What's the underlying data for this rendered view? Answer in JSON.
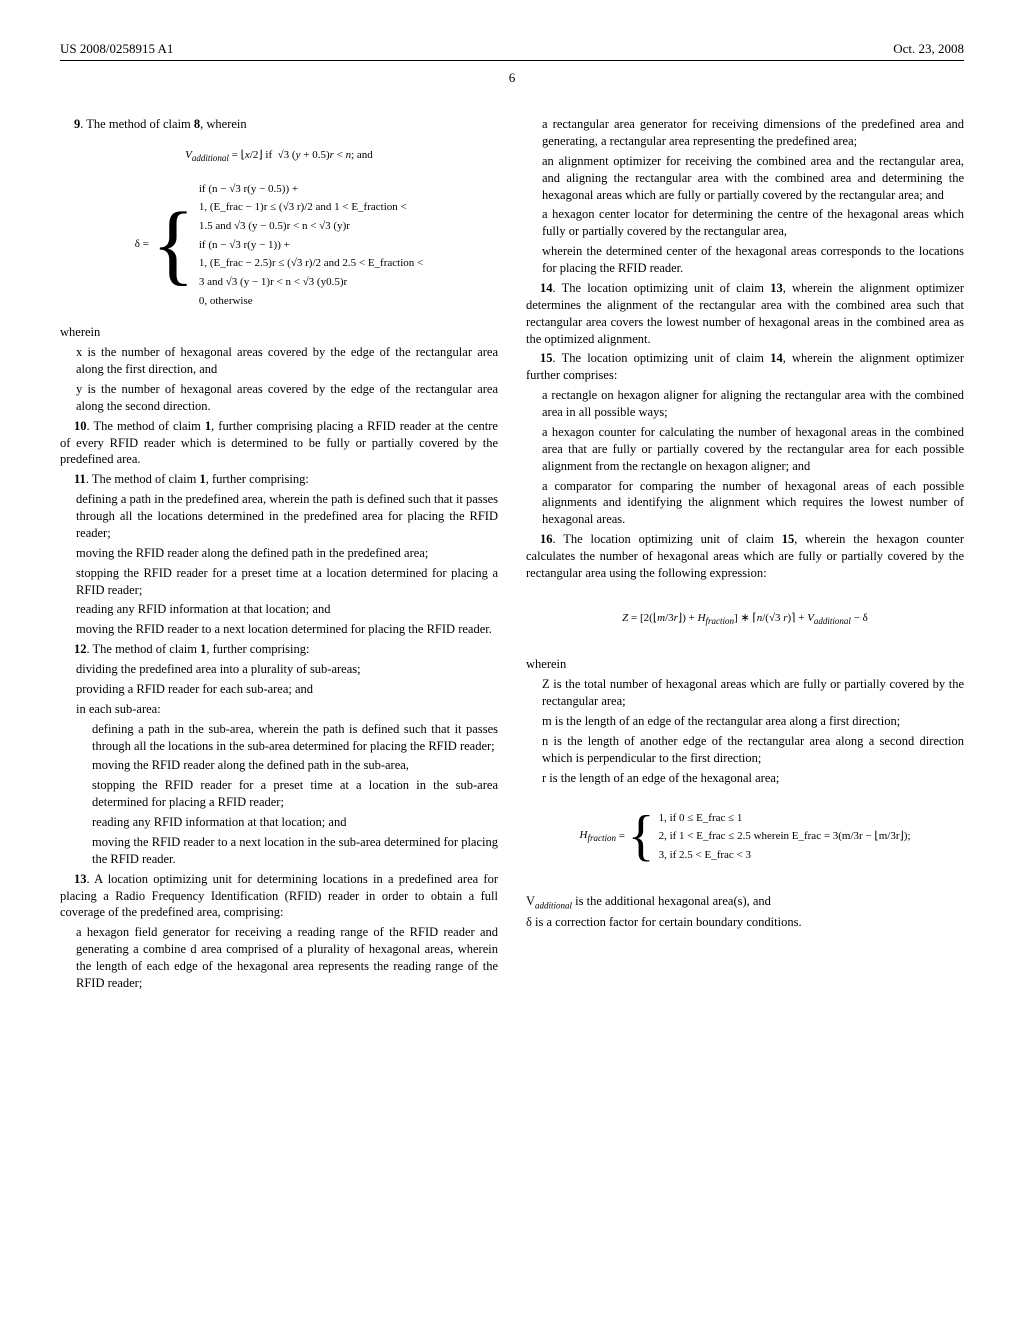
{
  "header": {
    "pub_no": "US 2008/0258915 A1",
    "date": "Oct. 23, 2008"
  },
  "page_number": "6",
  "left": {
    "claim9_intro": "9. The method of claim 8, wherein",
    "formula_v": "V_additional = ⌊x/2⌋ if √3 (y + 0.5)r < n; and",
    "delta_eq_lhs": "δ =",
    "delta_case1a": "if (n − √3 r(y − 0.5)) +",
    "delta_case1b": "1,   (E_frac − 1)r ≤ (√3 r)/2 and 1 < E_fraction <",
    "delta_case1c": "1.5 and √3 (y − 0.5)r < n < √3 (y)r",
    "delta_case2a": "if (n − √3 r(y − 1)) +",
    "delta_case2b": "1,   (E_frac − 2.5)r ≤ (√3 r)/2 and 2.5 < E_fraction <",
    "delta_case2c": "3 and √3 (y − 1)r < n < √3 (y0.5)r",
    "delta_case3": "0,                         otherwise",
    "wherein": "wherein",
    "x_def": "x is the number of hexagonal areas covered by the edge of the rectangular area along the first direction, and",
    "y_def": "y is the number of hexagonal areas covered by the edge of the rectangular area along the second direction.",
    "claim10": "10. The method of claim 1, further comprising placing a RFID reader at the centre of every RFID reader which is determined to be fully or partially covered by the predefined area.",
    "claim11_intro": "11. The method of claim 1, further comprising:",
    "claim11_a": "defining a path in the predefined area, wherein the path is defined such that it passes through all the locations determined in the predefined area for placing the RFID reader;",
    "claim11_b": "moving the RFID reader along the defined path in the predefined area;",
    "claim11_c": "stopping the RFID reader for a preset time at a location determined for placing a RFID reader;",
    "claim11_d": "reading any RFID information at that location; and",
    "claim11_e": "moving the RFID reader to a next location determined for placing the RFID reader.",
    "claim12_intro": "12. The method of claim 1, further comprising:",
    "claim12_a": "dividing the predefined area into a plurality of sub-areas;",
    "claim12_b": "providing a RFID reader for each sub-area; and",
    "claim12_c": "in each sub-area:",
    "claim12_d": "defining a path in the sub-area, wherein the path is defined such that it passes through all the locations in the sub-area determined for placing the RFID reader;",
    "claim12_e": "moving the RFID reader along the defined path in the sub-area,",
    "claim12_f": "stopping the RFID reader for a preset time at a location in the sub-area determined for placing a RFID reader;",
    "claim12_g": "reading any RFID information at that location; and",
    "claim12_h": "moving the RFID reader to a next location in the sub-area determined for placing the RFID reader.",
    "claim13_intro": "13. A location optimizing unit for determining locations in a predefined area for placing a Radio Frequency Identification (RFID) reader in order to obtain a full coverage of the predefined area, comprising:",
    "claim13_a": "a hexagon field generator for receiving a reading range of the RFID reader and generating a combine d area comprised of a plurality of hexagonal areas, wherein the length of each edge of the hexagonal area represents the reading range of the RFID reader;"
  },
  "right": {
    "claim13_b": "a rectangular area generator for receiving dimensions of the predefined area and generating, a rectangular area representing the predefined area;",
    "claim13_c": "an alignment optimizer for receiving the combined area and the rectangular area, and aligning the rectangular area with the combined area and determining the hexagonal areas which are fully or partially covered by the rectangular area; and",
    "claim13_d": "a hexagon center locator for determining the centre of the hexagonal areas which fully or partially covered by the rectangular area,",
    "claim13_e": "wherein the determined center of the hexagonal areas corresponds to the locations for placing the RFID reader.",
    "claim14": "14. The location optimizing unit of claim 13, wherein the alignment optimizer determines the alignment of the rectangular area with the combined area such that rectangular area covers the lowest number of hexagonal areas in the combined area as the optimized alignment.",
    "claim15_intro": "15. The location optimizing unit of claim 14, wherein the alignment optimizer further comprises:",
    "claim15_a": "a rectangle on hexagon aligner for aligning the rectangular area with the combined area in all possible ways;",
    "claim15_b": "a hexagon counter for calculating the number of hexagonal areas in the combined area that are fully or partially covered by the rectangular area for each possible alignment from the rectangle on hexagon aligner; and",
    "claim15_c": "a comparator for comparing the number of hexagonal areas of each possible alignments and identifying the alignment which requires the lowest number of hexagonal areas.",
    "claim16_intro": "16. The location optimizing unit of claim 15, wherein the hexagon counter calculates the number of hexagonal areas which are fully or partially covered by the rectangular area using the following expression:",
    "formula_z": "Z = [2(⌊m/3r⌋) + H_fraction] * ⌈n/(√3 r)⌉ + V_additional − δ",
    "wherein": "wherein",
    "z_def": "Z is the total number of hexagonal areas which are fully or partially covered by the rectangular area;",
    "m_def": "m is the length of an edge of the rectangular area along a first direction;",
    "n_def": "n is the length of another edge of the rectangular area along a second direction which is perpendicular to the first direction;",
    "r_def": "r is the length of an edge of the hexagonal area;",
    "hfrac_lhs": "H_fraction =",
    "hfrac_c1": "1,   if 0 ≤ E_frac ≤ 1",
    "hfrac_c2": "2,   if 1 < E_frac ≤ 2.5  wherein E_frac = 3(m/3r − ⌊m/3r⌋);",
    "hfrac_c3": "3,   if 2.5 < E_frac < 3",
    "v_footer": "V_additional is the additional hexagonal area(s), and",
    "delta_footer": "δ is a correction factor for certain boundary conditions."
  }
}
